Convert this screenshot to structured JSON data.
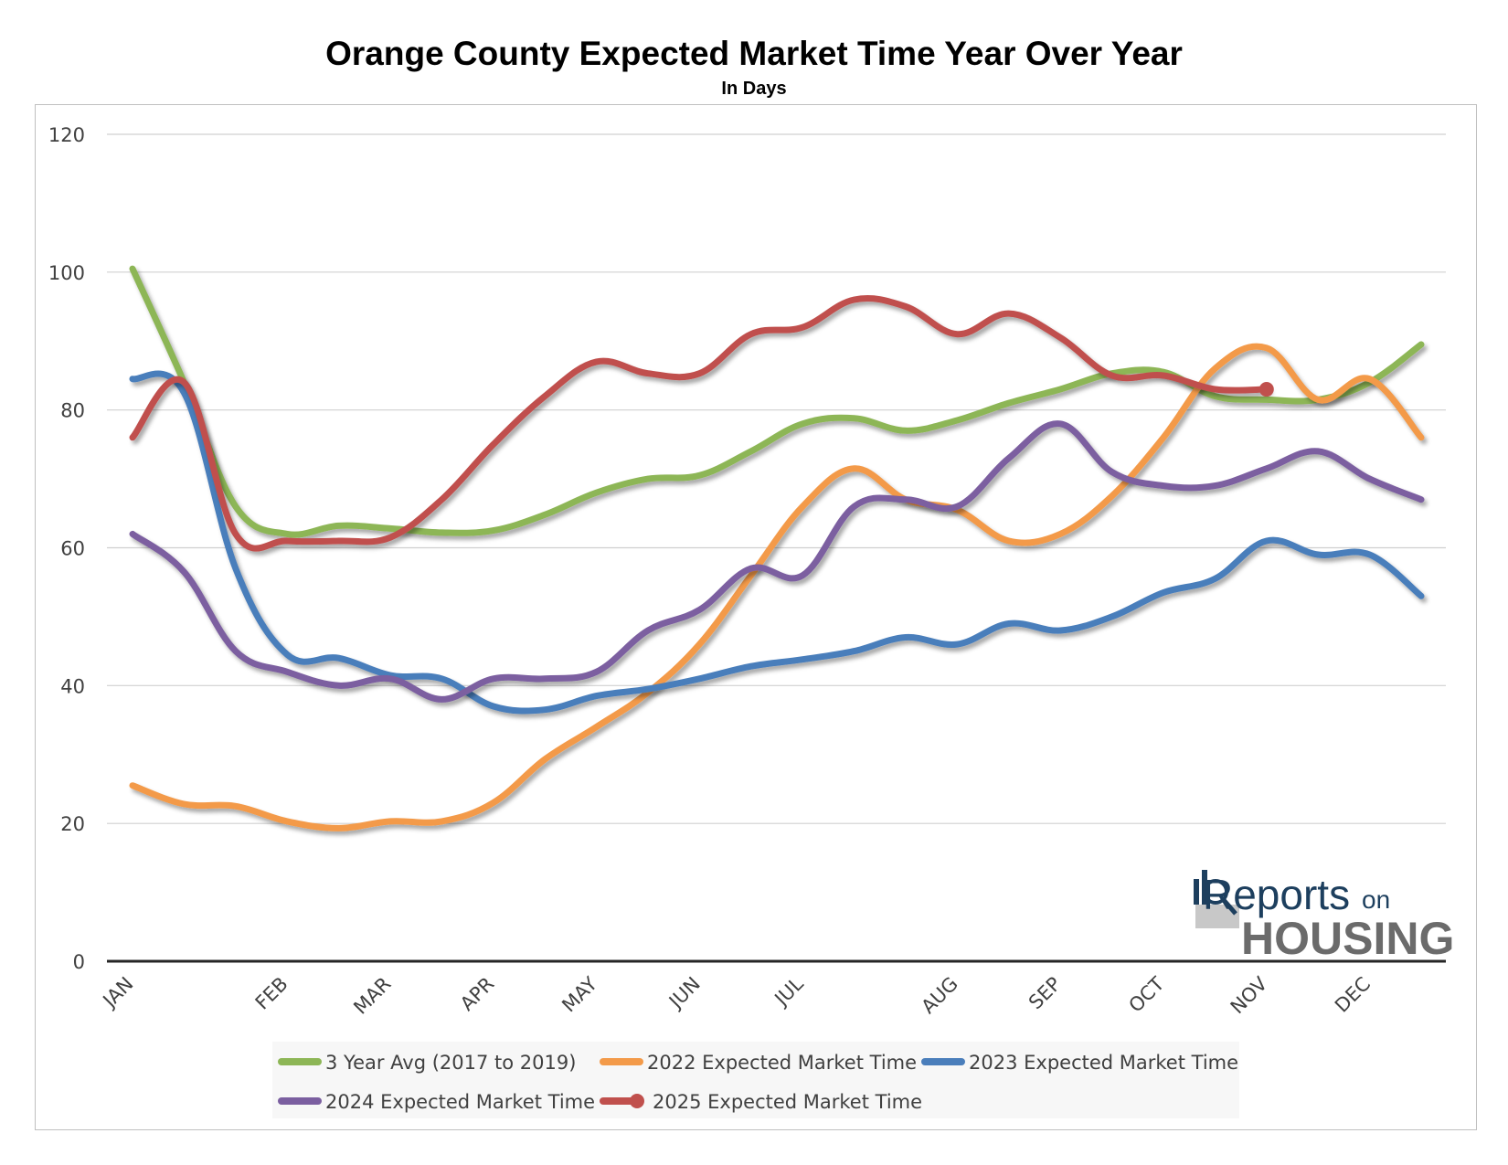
{
  "title": "Orange County Expected Market Time Year Over Year",
  "subtitle": "In Days",
  "logo": {
    "top": "Reports",
    "on": "on",
    "bottom": "HOUSING"
  },
  "chart_data": {
    "type": "line",
    "title": "Orange County Expected Market Time Year Over Year",
    "subtitle": "In Days",
    "xlabel": "",
    "ylabel": "",
    "ylim": [
      0,
      120
    ],
    "yticks": [
      0,
      20,
      40,
      60,
      80,
      100,
      120
    ],
    "grid": true,
    "legend_position": "bottom",
    "month_ticks": [
      {
        "label": "JAN",
        "x": 0
      },
      {
        "label": "FEB",
        "x": 3
      },
      {
        "label": "MAR",
        "x": 5
      },
      {
        "label": "APR",
        "x": 7
      },
      {
        "label": "MAY",
        "x": 9
      },
      {
        "label": "JUN",
        "x": 11
      },
      {
        "label": "JUL",
        "x": 13
      },
      {
        "label": "AUG",
        "x": 16
      },
      {
        "label": "SEP",
        "x": 18
      },
      {
        "label": "OCT",
        "x": 20
      },
      {
        "label": "NOV",
        "x": 22
      },
      {
        "label": "DEC",
        "x": 24
      }
    ],
    "x_max": 25,
    "series": [
      {
        "name": "3 Year Avg (2017 to 2019)",
        "color": "#8db656",
        "marker": false,
        "values": [
          100.5,
          84,
          66,
          62,
          63.2,
          62.8,
          62.2,
          62.5,
          64.8,
          68,
          70,
          70.5,
          74,
          78,
          78.8,
          77,
          78.5,
          81,
          83,
          85.3,
          85.5,
          82,
          81.5,
          81.5,
          84,
          89.5
        ]
      },
      {
        "name": "2022 Expected Market Time",
        "color": "#f39a49",
        "marker": false,
        "values": [
          25.5,
          22.8,
          22.5,
          20.3,
          19.3,
          20.3,
          20.3,
          23,
          29.3,
          34,
          39,
          46,
          56,
          66,
          71.5,
          67,
          65.5,
          61,
          62,
          67.5,
          76,
          86,
          89,
          81.5,
          84.5,
          76
        ]
      },
      {
        "name": "2023 Expected Market Time",
        "color": "#4a7ebb",
        "marker": false,
        "values": [
          84.5,
          82.5,
          57,
          44.5,
          44,
          41.5,
          41,
          37,
          36.5,
          38.5,
          39.5,
          41,
          42.8,
          43.8,
          45,
          47,
          46,
          49,
          48,
          50,
          53.5,
          55.5,
          61,
          59,
          59,
          53
        ]
      },
      {
        "name": "2024 Expected Market Time",
        "color": "#7b5fa0",
        "marker": false,
        "values": [
          62,
          56.5,
          45,
          42,
          40,
          41,
          38,
          41,
          41,
          42,
          48,
          51,
          57,
          56,
          66,
          67,
          66,
          73,
          78,
          71,
          69,
          69,
          71.5,
          74,
          70,
          67
        ]
      },
      {
        "name": "2025 Expected Market Time",
        "color": "#c0504d",
        "marker": true,
        "values": [
          76,
          84,
          62,
          61,
          61,
          61.5,
          67,
          75,
          82,
          87,
          85.3,
          85.3,
          91,
          92,
          96,
          95,
          91,
          94,
          90.5,
          85,
          85,
          83,
          83
        ]
      }
    ]
  }
}
